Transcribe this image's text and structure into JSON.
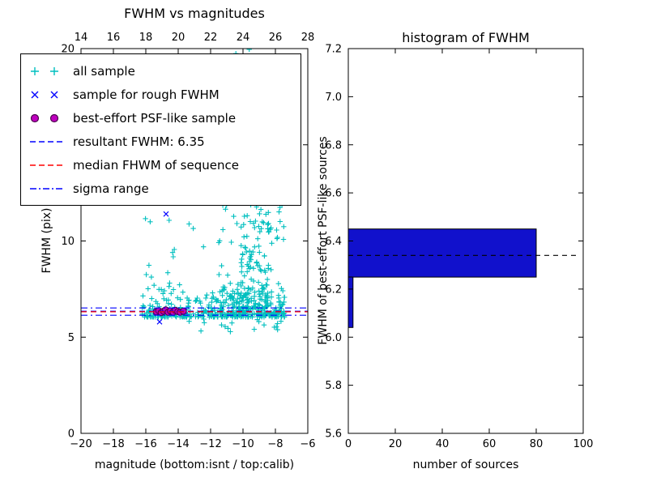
{
  "figure": {
    "background": "#ffffff"
  },
  "chart_data": [
    {
      "id": "fwhm_vs_mag",
      "type": "scatter",
      "title": "FWHM vs magnitudes",
      "xlabel": "magnitude (bottom:isnt / top:calib)",
      "ylabel": "FWHM (pix)",
      "xlim": [
        -20,
        -6
      ],
      "ylim": [
        0,
        20
      ],
      "x_ticks_bottom": [
        -20,
        -18,
        -16,
        -14,
        -12,
        -10,
        -8,
        -6
      ],
      "x_ticks_top": [
        14,
        16,
        18,
        20,
        22,
        24,
        26,
        28
      ],
      "y_ticks": [
        0,
        5,
        10,
        15,
        20
      ],
      "grid": false,
      "legend_position": "upper left",
      "series": [
        {
          "name": "all sample",
          "marker": "plus",
          "color": "#00bfbf",
          "cluster_seed": 42,
          "clusters": [
            {
              "count": 300,
              "x_range": [
                -16.25,
                -7.4
              ],
              "y_range": [
                6.05,
                7.5
              ],
              "y_power": 3
            },
            {
              "count": 150,
              "x_range": [
                -11.5,
                -7.4
              ],
              "y_range": [
                6.2,
                13.0
              ],
              "y_power": 3.5
            },
            {
              "count": 130,
              "x_range": [
                -10.4,
                -8.2
              ],
              "y_range": [
                6.5,
                14.0
              ],
              "y_power": 1.8
            },
            {
              "count": 60,
              "x_range": [
                -10.2,
                -8.8
              ],
              "y_range": [
                13.0,
                20.0
              ],
              "y_power": 1
            },
            {
              "count": 22,
              "x_range": [
                -16.1,
                -12.3
              ],
              "y_range": [
                7.3,
                12.3
              ],
              "y_power": 1
            },
            {
              "count": 18,
              "x_range": [
                -13.5,
                -7.5
              ],
              "y_range": [
                5.25,
                6.0
              ],
              "y_power": 1
            },
            {
              "count": 6,
              "x_range": [
                -11.5,
                -10.3
              ],
              "y_range": [
                14.0,
                20.0
              ],
              "y_power": 1
            }
          ]
        },
        {
          "name": "sample for rough FWHM",
          "marker": "x",
          "color": "#0000ff",
          "points": [
            [
              -15.4,
              6.3
            ],
            [
              -15.15,
              5.8
            ],
            [
              -15.1,
              6.35
            ],
            [
              -14.85,
              6.28
            ],
            [
              -14.75,
              11.4
            ],
            [
              -14.6,
              6.4
            ],
            [
              -14.35,
              6.3
            ],
            [
              -14.1,
              6.36
            ],
            [
              -13.85,
              6.3
            ],
            [
              -13.6,
              6.34
            ]
          ]
        },
        {
          "name": "best-effort PSF-like sample",
          "marker": "circle",
          "color": "#bf00bf",
          "edge_color": "#4b004b",
          "points": [
            [
              -15.35,
              6.32
            ],
            [
              -15.2,
              6.38
            ],
            [
              -15.05,
              6.28
            ],
            [
              -14.9,
              6.35
            ],
            [
              -14.78,
              6.42
            ],
            [
              -14.62,
              6.3
            ],
            [
              -14.48,
              6.36
            ],
            [
              -14.32,
              6.3
            ],
            [
              -14.18,
              6.4
            ],
            [
              -14.02,
              6.33
            ],
            [
              -13.88,
              6.3
            ],
            [
              -13.68,
              6.35
            ]
          ]
        }
      ],
      "hlines": [
        {
          "name": "resultant FWHM: 6.35",
          "y": 6.35,
          "color": "#0000ff",
          "style": "dashed"
        },
        {
          "name": "median FHWM of sequence",
          "y": 6.32,
          "color": "#ff0000",
          "style": "dashed"
        },
        {
          "name": "sigma range upper",
          "y": 6.52,
          "color": "#0000ff",
          "style": "dashdot"
        },
        {
          "name": "sigma range lower",
          "y": 6.14,
          "color": "#0000ff",
          "style": "dashdot"
        }
      ]
    },
    {
      "id": "fwhm_hist",
      "type": "bar",
      "orientation": "horizontal",
      "title": "histogram of FWHM",
      "xlabel": "number of sources",
      "ylabel": "FWHM of best-effort PSF-like sources",
      "xlim": [
        0,
        100
      ],
      "ylim": [
        5.6,
        7.2
      ],
      "x_ticks": [
        0,
        20,
        40,
        60,
        80,
        100
      ],
      "y_ticks": [
        5.6,
        5.8,
        6.0,
        6.2,
        6.4,
        6.6,
        6.8,
        7.0,
        7.2
      ],
      "bar_color": "#1111cc",
      "bar_edge_color": "#000000",
      "bars": [
        {
          "y_from": 6.25,
          "y_to": 6.45,
          "value": 80
        },
        {
          "y_from": 6.04,
          "y_to": 6.25,
          "value": 2
        }
      ],
      "median_line": {
        "y": 6.34,
        "x_from": 0,
        "x_to": 97,
        "color": "#000000",
        "style": "dashed"
      }
    }
  ],
  "legend": {
    "items": [
      {
        "label": "all sample",
        "marker": "plus",
        "color": "#00bfbf"
      },
      {
        "label": "sample for rough FWHM",
        "marker": "x",
        "color": "#0000ff"
      },
      {
        "label": "best-effort PSF-like sample",
        "marker": "circle",
        "color": "#bf00bf",
        "edge_color": "#4b004b"
      },
      {
        "label": "resultant FWHM: 6.35",
        "marker": "dashed-line",
        "color": "#0000ff"
      },
      {
        "label": "median FHWM of sequence",
        "marker": "dashed-line",
        "color": "#ff0000"
      },
      {
        "label": "sigma range",
        "marker": "dashdot-line",
        "color": "#0000ff"
      }
    ]
  }
}
